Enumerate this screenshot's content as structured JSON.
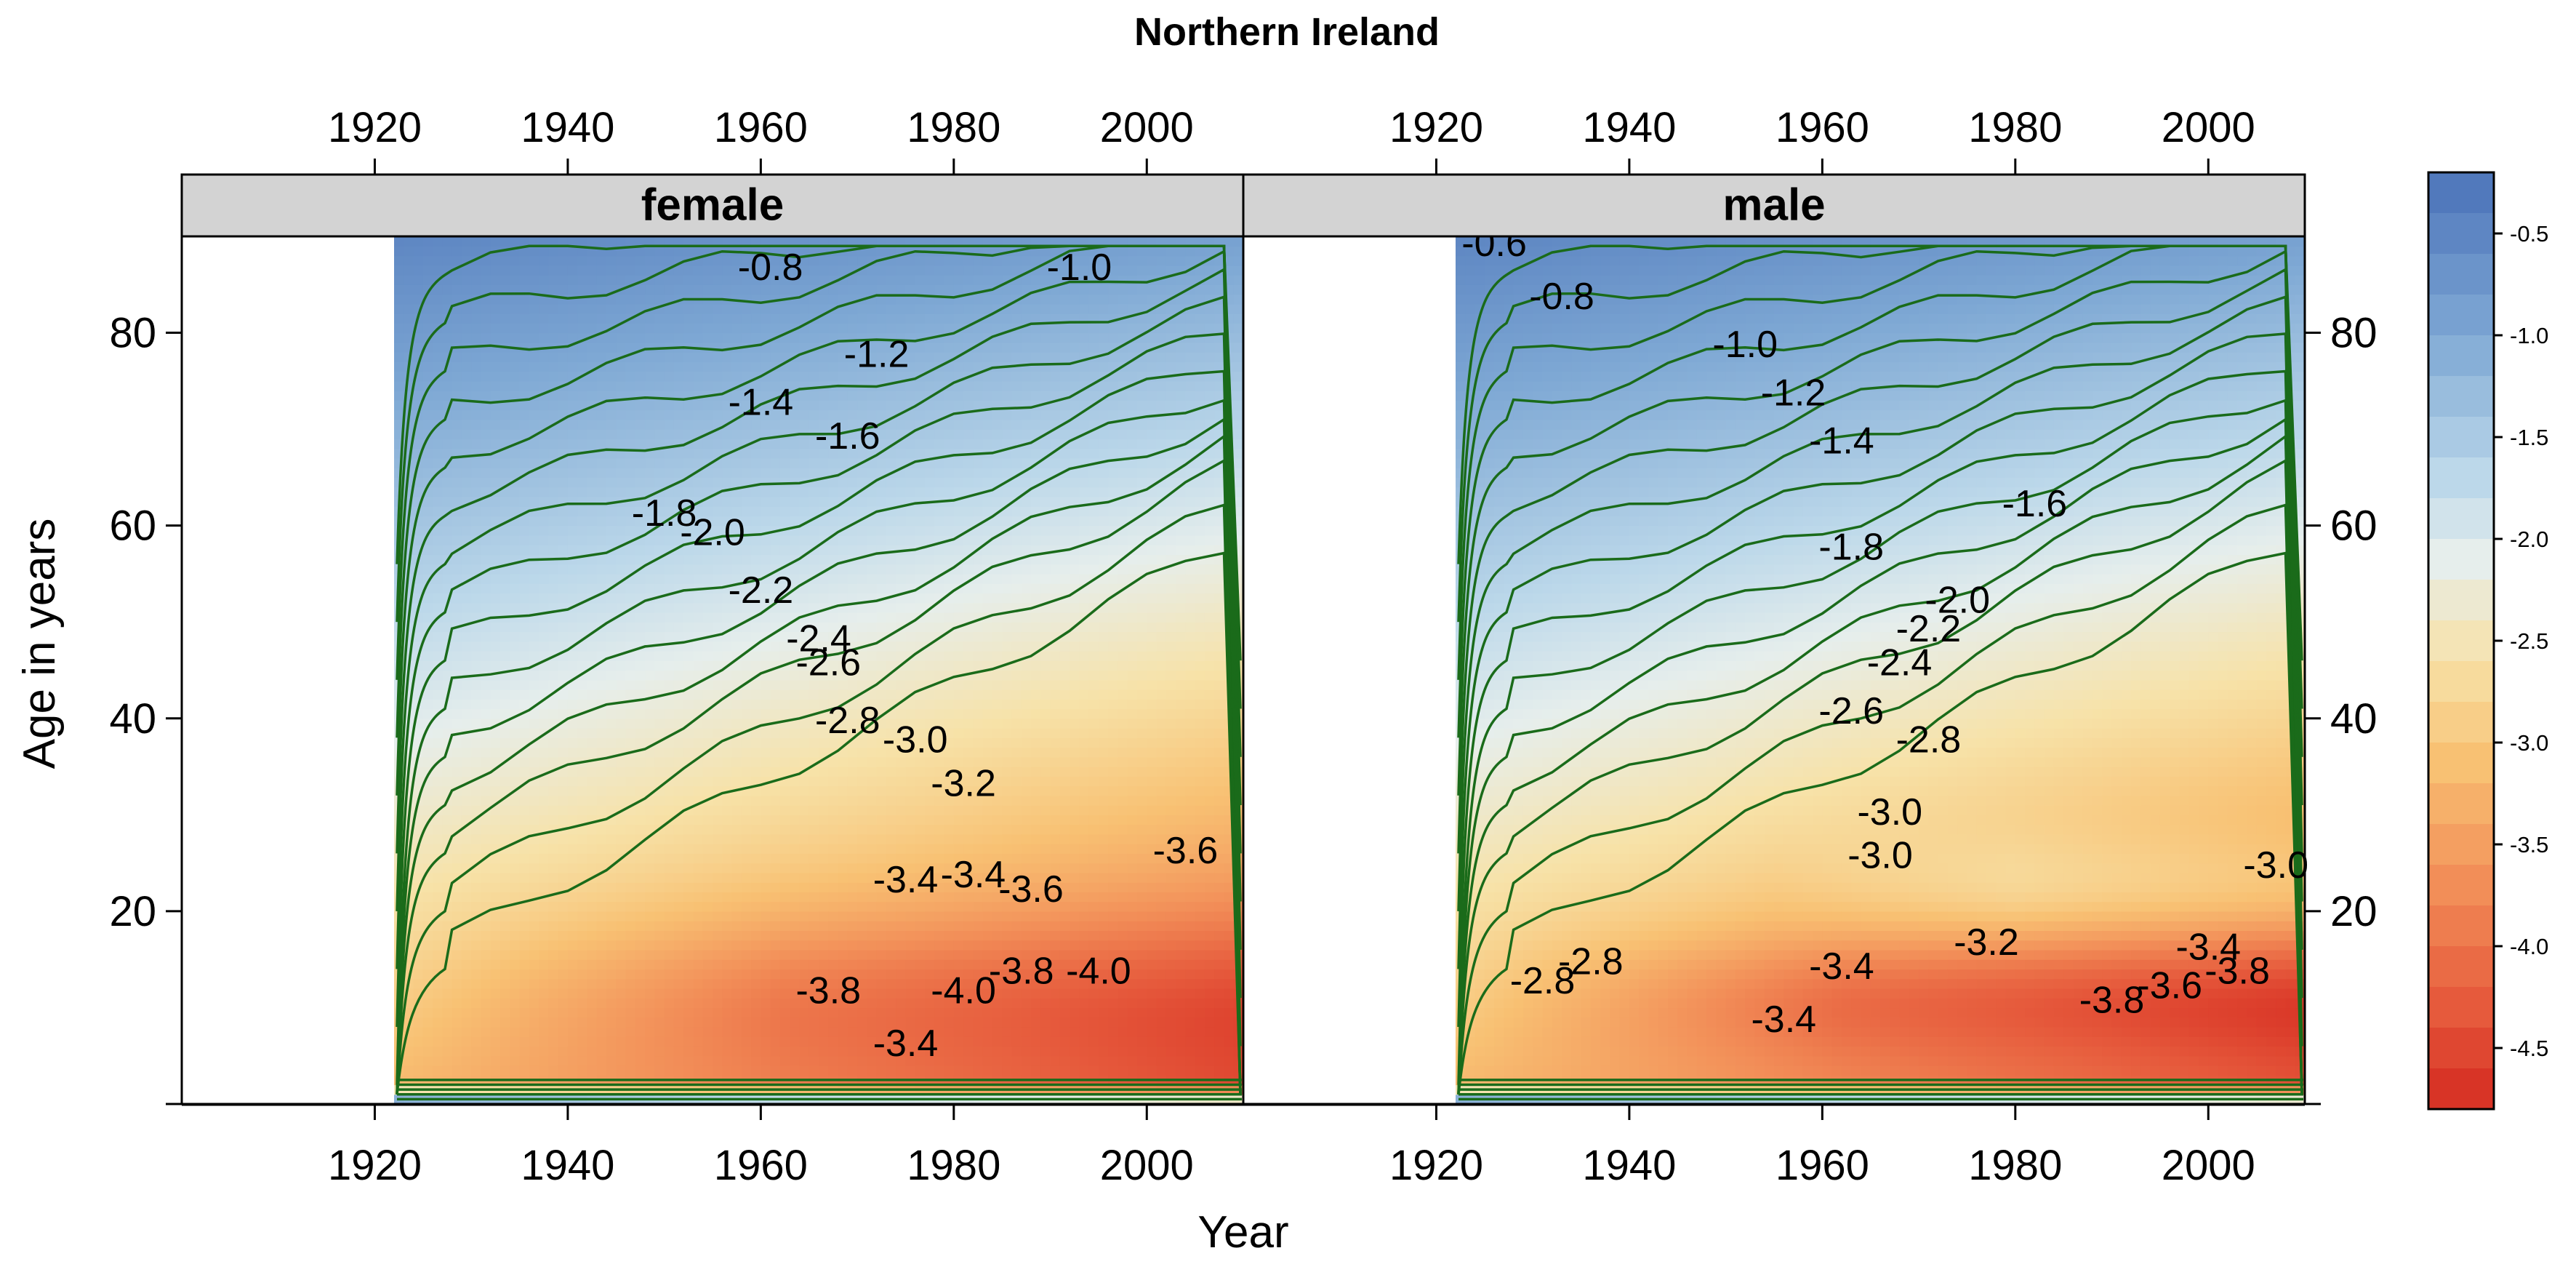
{
  "chart_data": {
    "type": "heatmap",
    "title": "Northern Ireland",
    "xlabel": "Year",
    "ylabel": "Age in years",
    "xlim": [
      1900,
      2010
    ],
    "ylim": [
      0,
      90
    ],
    "x_ticks": [
      1920,
      1940,
      1960,
      1980,
      2000
    ],
    "y_ticks": [
      20,
      40,
      60,
      80
    ],
    "data_start_year": 1922,
    "panels": [
      {
        "name": "female",
        "contour_labels": [
          {
            "label": "-0.8",
            "x": 1961,
            "y": 86.5
          },
          {
            "label": "-1.0",
            "x": 1993,
            "y": 86.5
          },
          {
            "label": "-1.2",
            "x": 1972,
            "y": 77.5
          },
          {
            "label": "-1.4",
            "x": 1960,
            "y": 72.5
          },
          {
            "label": "-1.6",
            "x": 1969,
            "y": 69
          },
          {
            "label": "-1.8",
            "x": 1950,
            "y": 61
          },
          {
            "label": "-2.0",
            "x": 1955,
            "y": 59
          },
          {
            "label": "-2.2",
            "x": 1960,
            "y": 53
          },
          {
            "label": "-2.4",
            "x": 1966,
            "y": 48
          },
          {
            "label": "-2.6",
            "x": 1967,
            "y": 45.5
          },
          {
            "label": "-2.8",
            "x": 1969,
            "y": 39.5
          },
          {
            "label": "-3.0",
            "x": 1976,
            "y": 37.5
          },
          {
            "label": "-3.2",
            "x": 1981,
            "y": 33
          },
          {
            "label": "-3.4",
            "x": 1975,
            "y": 23
          },
          {
            "label": "-3.4",
            "x": 1982,
            "y": 23.5
          },
          {
            "label": "-3.6",
            "x": 1988,
            "y": 22
          },
          {
            "label": "-3.6",
            "x": 2004,
            "y": 26
          },
          {
            "label": "-3.8",
            "x": 1967,
            "y": 11.5
          },
          {
            "label": "-3.8",
            "x": 1987,
            "y": 13.5
          },
          {
            "label": "-4.0",
            "x": 1981,
            "y": 11.5
          },
          {
            "label": "-4.0",
            "x": 1995,
            "y": 13.5
          },
          {
            "label": "-3.4",
            "x": 1975,
            "y": 6
          }
        ]
      },
      {
        "name": "male",
        "contour_labels": [
          {
            "label": "-0.6",
            "x": 1926,
            "y": 89
          },
          {
            "label": "-0.8",
            "x": 1933,
            "y": 83.5
          },
          {
            "label": "-1.0",
            "x": 1952,
            "y": 78.5
          },
          {
            "label": "-1.2",
            "x": 1957,
            "y": 73.5
          },
          {
            "label": "-1.4",
            "x": 1962,
            "y": 68.5
          },
          {
            "label": "-1.6",
            "x": 1982,
            "y": 62
          },
          {
            "label": "-1.8",
            "x": 1963,
            "y": 57.5
          },
          {
            "label": "-2.0",
            "x": 1974,
            "y": 52
          },
          {
            "label": "-2.2",
            "x": 1971,
            "y": 49
          },
          {
            "label": "-2.4",
            "x": 1968,
            "y": 45.5
          },
          {
            "label": "-2.6",
            "x": 1963,
            "y": 40.5
          },
          {
            "label": "-2.8",
            "x": 1971,
            "y": 37.5
          },
          {
            "label": "-3.0",
            "x": 1967,
            "y": 30
          },
          {
            "label": "-3.0",
            "x": 1966,
            "y": 25.5
          },
          {
            "label": "-3.0",
            "x": 2007,
            "y": 24.5
          },
          {
            "label": "-3.2",
            "x": 1977,
            "y": 16.5
          },
          {
            "label": "-3.4",
            "x": 1962,
            "y": 14
          },
          {
            "label": "-3.4",
            "x": 1956,
            "y": 8.5
          },
          {
            "label": "-3.8",
            "x": 1990,
            "y": 10.5
          },
          {
            "label": "-3.6",
            "x": 1996,
            "y": 12
          },
          {
            "label": "-3.4",
            "x": 2000,
            "y": 16
          },
          {
            "label": "-3.8",
            "x": 2003,
            "y": 13.5
          },
          {
            "label": "-2.8",
            "x": 1931,
            "y": 12.5
          },
          {
            "label": "-2.8",
            "x": 1936,
            "y": 14.5
          }
        ]
      }
    ],
    "colorbar": {
      "range": [
        -4.8,
        -0.2
      ],
      "ticks": [
        "-0.5",
        "-1.0",
        "-1.5",
        "-2.0",
        "-2.5",
        "-3.0",
        "-3.5",
        "-4.0",
        "-4.5"
      ],
      "tick_values": [
        -0.5,
        -1.0,
        -1.5,
        -2.0,
        -2.5,
        -3.0,
        -3.5,
        -4.0,
        -4.5
      ],
      "color_stops": [
        {
          "value": -0.2,
          "color": "#4a72b8"
        },
        {
          "value": -1.0,
          "color": "#7ea8d4"
        },
        {
          "value": -1.7,
          "color": "#bcd8ea"
        },
        {
          "value": -2.1,
          "color": "#e6eeec"
        },
        {
          "value": -2.6,
          "color": "#f7e2a8"
        },
        {
          "value": -3.1,
          "color": "#f8c173"
        },
        {
          "value": -3.7,
          "color": "#f28e58"
        },
        {
          "value": -4.3,
          "color": "#e65a3c"
        },
        {
          "value": -4.8,
          "color": "#d52a20"
        }
      ]
    }
  }
}
